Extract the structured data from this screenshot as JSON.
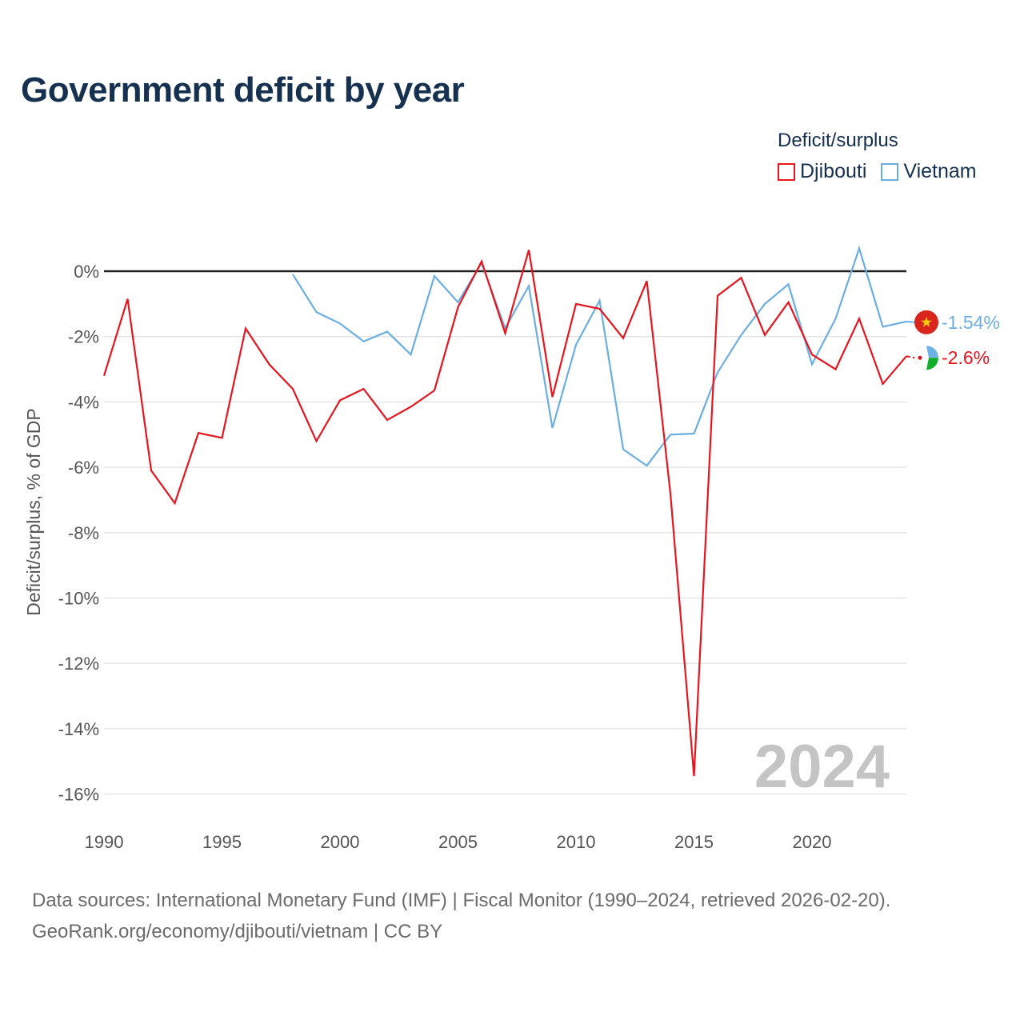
{
  "title": "Government deficit by year",
  "legend": {
    "title": "Deficit/surplus",
    "items": [
      {
        "label": "Djibouti",
        "color": "#e8141e"
      },
      {
        "label": "Vietnam",
        "color": "#6aaee2"
      }
    ]
  },
  "sources": {
    "line1": "Data sources: International Monetary Fund (IMF) | Fiscal Monitor (1990–2024, retrieved 2026-02-20).",
    "line2": "GeoRank.org/economy/djibouti/vietnam | CC BY"
  },
  "chart_data": {
    "type": "line",
    "title": "Government deficit by year",
    "xlabel": "",
    "ylabel": "Deficit/surplus, % of GDP",
    "xlim": [
      1990,
      2024
    ],
    "ylim": [
      -16.5,
      1.2
    ],
    "x_ticks": [
      1990,
      1995,
      2000,
      2005,
      2010,
      2015,
      2020
    ],
    "y_ticks": [
      0,
      -2,
      -4,
      -6,
      -8,
      -10,
      -12,
      -14,
      -16
    ],
    "y_tick_labels": [
      "0%",
      "-2%",
      "-4%",
      "-6%",
      "-8%",
      "-10%",
      "-12%",
      "-14%",
      "-16%"
    ],
    "current_year_label": "2024",
    "series": [
      {
        "name": "Djibouti",
        "color": "#e8141e",
        "end_label": "-2.6%",
        "x": [
          1990,
          1991,
          1992,
          1993,
          1994,
          1995,
          1996,
          1997,
          1998,
          1999,
          2000,
          2001,
          2002,
          2003,
          2004,
          2005,
          2006,
          2007,
          2008,
          2009,
          2010,
          2011,
          2012,
          2013,
          2014,
          2015,
          2016,
          2017,
          2018,
          2019,
          2020,
          2021,
          2022,
          2023,
          2024
        ],
        "values": [
          -3.2,
          -0.85,
          -6.1,
          -7.1,
          -4.95,
          -5.1,
          -1.75,
          -2.85,
          -3.6,
          -5.2,
          -3.95,
          -3.6,
          -4.55,
          -4.15,
          -3.65,
          -1.1,
          0.3,
          -1.9,
          0.65,
          -3.85,
          -1.0,
          -1.15,
          -2.05,
          -0.3,
          -6.8,
          -15.45,
          -0.75,
          -0.2,
          -1.95,
          -0.95,
          -2.55,
          -3.0,
          -1.45,
          -3.45,
          -2.6
        ]
      },
      {
        "name": "Vietnam",
        "color": "#6aaee2",
        "end_label": "-1.54%",
        "x": [
          1998,
          1999,
          2000,
          2001,
          2002,
          2003,
          2004,
          2005,
          2006,
          2007,
          2008,
          2009,
          2010,
          2011,
          2012,
          2013,
          2014,
          2015,
          2016,
          2017,
          2018,
          2019,
          2020,
          2021,
          2022,
          2023,
          2024
        ],
        "values": [
          -0.1,
          -1.25,
          -1.6,
          -2.15,
          -1.85,
          -2.55,
          -0.15,
          -0.95,
          0.25,
          -1.75,
          -0.45,
          -4.8,
          -2.25,
          -0.9,
          -5.45,
          -5.95,
          -5.0,
          -4.97,
          -3.1,
          -1.95,
          -1.0,
          -0.4,
          -2.85,
          -1.45,
          0.7,
          -1.7,
          -1.54
        ]
      }
    ]
  }
}
